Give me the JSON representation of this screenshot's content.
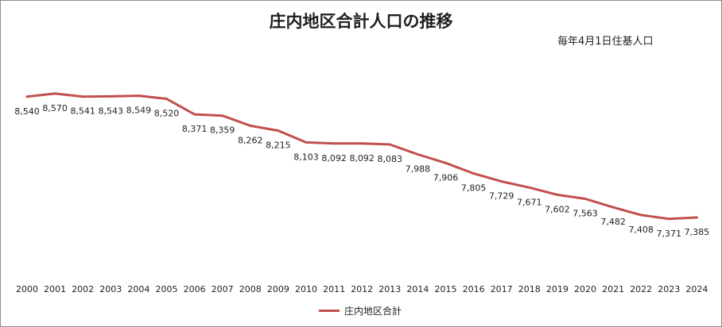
{
  "chart_data": {
    "type": "line",
    "title": "庄内地区合計人口の推移",
    "subtitle": "毎年4月1日住基人口",
    "categories": [
      "2000",
      "2001",
      "2002",
      "2003",
      "2004",
      "2005",
      "2006",
      "2007",
      "2008",
      "2009",
      "2010",
      "2011",
      "2012",
      "2013",
      "2014",
      "2015",
      "2016",
      "2017",
      "2018",
      "2019",
      "2020",
      "2021",
      "2022",
      "2023",
      "2024"
    ],
    "series": [
      {
        "name": "庄内地区合計",
        "color": "#c0504d",
        "values": [
          8540,
          8570,
          8541,
          8543,
          8549,
          8520,
          8371,
          8359,
          8262,
          8215,
          8103,
          8092,
          8092,
          8083,
          7988,
          7906,
          7805,
          7729,
          7671,
          7602,
          7563,
          7482,
          7408,
          7371,
          7385
        ],
        "labels": [
          "8,540",
          "8,570",
          "8,541",
          "8,543",
          "8,549",
          "8,520",
          "8,371",
          "8,359",
          "8,262",
          "8,215",
          "8,103",
          "8,092",
          "8,092",
          "8,083",
          "7,988",
          "7,906",
          "7,805",
          "7,729",
          "7,671",
          "7,602",
          "7,563",
          "7,482",
          "7,408",
          "7,371",
          "7,385"
        ]
      }
    ],
    "ylim": [
      6800,
      8850
    ],
    "grid": false,
    "legend_position": "bottom"
  }
}
